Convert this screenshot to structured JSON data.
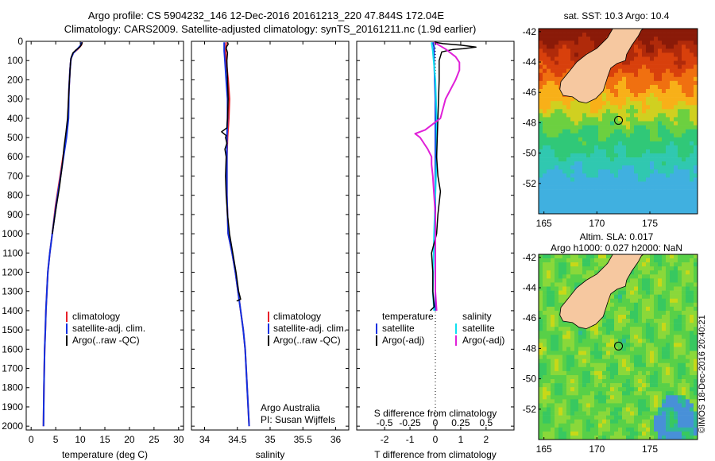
{
  "header": {
    "line1": "Argo profile: CS 5904232_146 12-Dec-2016 20161213_220 47.844S 172.04E",
    "line2": "Climatology: CARS2009. Satellite-adjusted climatology: synTS_20161211.nc (1.9d earlier)"
  },
  "credit": "©IMOS 18-Dec-2016 20:40:21",
  "colors": {
    "climatology": "#e8202a",
    "satellite": "#1030e0",
    "argo": "#000000",
    "cyan": "#10e0f0",
    "magenta": "#e020d8",
    "land": "#f6c8a0"
  },
  "chart_data": [
    {
      "type": "line",
      "id": "temperature-panel",
      "xlabel": "temperature (deg C)",
      "ylabel": "",
      "xlim": [
        -1,
        31
      ],
      "ylim": [
        0,
        2020
      ],
      "xticks": [
        "0",
        "5",
        "10",
        "15",
        "20",
        "25",
        "30"
      ],
      "xtick_values": [
        0,
        5,
        10,
        15,
        20,
        25,
        30
      ],
      "yticks": [
        "0",
        "100",
        "200",
        "300",
        "400",
        "500",
        "600",
        "700",
        "800",
        "900",
        "1000",
        "1100",
        "1200",
        "1300",
        "1400",
        "1500",
        "1600",
        "1700",
        "1800",
        "1900",
        "2000"
      ],
      "legend": [
        "climatology",
        "satellite-adj. clim.",
        "Argo(..raw -QC)"
      ],
      "series": [
        {
          "name": "climatology",
          "color": "#e8202a",
          "width": 2,
          "points": [
            [
              10.4,
              5
            ],
            [
              10.2,
              20
            ],
            [
              9.5,
              40
            ],
            [
              8.6,
              60
            ],
            [
              8.1,
              90
            ],
            [
              7.9,
              150
            ],
            [
              7.7,
              250
            ],
            [
              7.5,
              400
            ],
            [
              7.1,
              500
            ],
            [
              6.5,
              600
            ],
            [
              5.9,
              700
            ],
            [
              5.0,
              850
            ],
            [
              4.3,
              1000
            ],
            [
              3.8,
              1100
            ],
            [
              3.4,
              1200
            ],
            [
              3.2,
              1300
            ],
            [
              3.0,
              1400
            ],
            [
              2.9,
              1500
            ],
            [
              2.75,
              1600
            ],
            [
              2.6,
              1800
            ],
            [
              2.5,
              2000
            ]
          ]
        },
        {
          "name": "satellite-adj. clim.",
          "color": "#1030e0",
          "width": 2,
          "points": [
            [
              10.3,
              5
            ],
            [
              10.1,
              20
            ],
            [
              9.4,
              40
            ],
            [
              8.6,
              60
            ],
            [
              8.1,
              90
            ],
            [
              7.9,
              150
            ],
            [
              7.7,
              250
            ],
            [
              7.6,
              400
            ],
            [
              7.2,
              500
            ],
            [
              6.6,
              600
            ],
            [
              6.0,
              700
            ],
            [
              5.1,
              850
            ],
            [
              4.3,
              1000
            ],
            [
              3.8,
              1100
            ],
            [
              3.4,
              1200
            ],
            [
              3.2,
              1300
            ],
            [
              3.0,
              1400
            ],
            [
              2.9,
              1500
            ],
            [
              2.75,
              1600
            ],
            [
              2.6,
              1800
            ],
            [
              2.5,
              2000
            ]
          ]
        },
        {
          "name": "Argo(..raw -QC)",
          "color": "#000000",
          "width": 1.5,
          "points": [
            [
              10.4,
              5
            ],
            [
              10.3,
              15
            ],
            [
              9.9,
              30
            ],
            [
              9.1,
              45
            ],
            [
              8.5,
              60
            ],
            [
              8.2,
              80
            ],
            [
              8.0,
              110
            ],
            [
              7.8,
              200
            ],
            [
              7.6,
              300
            ],
            [
              7.4,
              400
            ],
            [
              7.1,
              470
            ],
            [
              6.7,
              550
            ],
            [
              6.3,
              650
            ],
            [
              5.8,
              750
            ],
            [
              5.0,
              880
            ],
            [
              4.3,
              1000
            ]
          ]
        }
      ]
    },
    {
      "type": "line",
      "id": "salinity-panel",
      "xlabel": "salinity",
      "ylabel": "",
      "xlim": [
        33.8,
        36.2
      ],
      "ylim": [
        0,
        2020
      ],
      "xticks": [
        "34",
        "34.5",
        "35",
        "35.5",
        "36"
      ],
      "xtick_values": [
        34,
        34.5,
        35,
        35.5,
        36
      ],
      "legend": [
        "climatology",
        "satellite-adj. clim.",
        "Argo(..raw -QC)"
      ],
      "annotations": [
        "Argo Australia",
        "PI: Susan Wijffels"
      ],
      "series": [
        {
          "name": "climatology",
          "color": "#e8202a",
          "width": 2,
          "points": [
            [
              34.33,
              5
            ],
            [
              34.32,
              50
            ],
            [
              34.33,
              100
            ],
            [
              34.36,
              200
            ],
            [
              34.38,
              300
            ],
            [
              34.37,
              400
            ],
            [
              34.35,
              500
            ],
            [
              34.34,
              600
            ],
            [
              34.34,
              800
            ],
            [
              34.36,
              1000
            ],
            [
              34.42,
              1100
            ],
            [
              34.47,
              1200
            ],
            [
              34.51,
              1300
            ],
            [
              34.55,
              1400
            ],
            [
              34.59,
              1500
            ],
            [
              34.62,
              1600
            ],
            [
              34.65,
              1800
            ],
            [
              34.68,
              2000
            ]
          ]
        },
        {
          "name": "satellite-adj. clim.",
          "color": "#1030e0",
          "width": 2,
          "points": [
            [
              34.3,
              5
            ],
            [
              34.3,
              50
            ],
            [
              34.31,
              100
            ],
            [
              34.33,
              200
            ],
            [
              34.35,
              300
            ],
            [
              34.35,
              400
            ],
            [
              34.34,
              500
            ],
            [
              34.34,
              600
            ],
            [
              34.34,
              800
            ],
            [
              34.36,
              1000
            ],
            [
              34.42,
              1100
            ],
            [
              34.47,
              1200
            ],
            [
              34.51,
              1300
            ],
            [
              34.55,
              1400
            ],
            [
              34.59,
              1500
            ],
            [
              34.62,
              1600
            ],
            [
              34.65,
              1800
            ],
            [
              34.68,
              2000
            ]
          ]
        },
        {
          "name": "Argo(..raw -QC)",
          "color": "#000000",
          "width": 1.5,
          "points": [
            [
              34.35,
              5
            ],
            [
              34.36,
              15
            ],
            [
              34.34,
              25
            ],
            [
              34.33,
              35
            ],
            [
              34.35,
              60
            ],
            [
              34.34,
              100
            ],
            [
              34.35,
              200
            ],
            [
              34.36,
              300
            ],
            [
              34.35,
              400
            ],
            [
              34.34,
              450
            ],
            [
              34.26,
              470
            ],
            [
              34.33,
              490
            ],
            [
              34.32,
              500
            ],
            [
              34.34,
              530
            ],
            [
              34.31,
              560
            ],
            [
              34.33,
              600
            ],
            [
              34.32,
              700
            ],
            [
              34.33,
              800
            ],
            [
              34.35,
              900
            ],
            [
              34.38,
              1000
            ],
            [
              34.43,
              1100
            ],
            [
              34.48,
              1200
            ],
            [
              34.52,
              1300
            ],
            [
              34.55,
              1340
            ],
            [
              34.49,
              1350
            ]
          ]
        }
      ]
    },
    {
      "type": "line",
      "id": "difference-panel",
      "xlabel": "T difference from climatology",
      "xlabel_top": "S difference from climatology",
      "xlim": [
        -3.1,
        3.1
      ],
      "ylim": [
        0,
        2020
      ],
      "xticks": [
        "-2",
        "-1",
        "0",
        "1",
        "2"
      ],
      "xtick_values": [
        -2,
        -1,
        0,
        1,
        2
      ],
      "s_ticks": [
        "-0.5",
        "-0.25",
        "0",
        "0.25",
        "0.5"
      ],
      "legend_temperature": {
        "heading": "temperature",
        "items": [
          "satellite",
          "Argo(-adj)"
        ]
      },
      "legend_salinity": {
        "heading": "salinity",
        "items": [
          "satellite",
          "Argo(-adj)"
        ]
      },
      "series": [
        {
          "name": "temperature satellite",
          "color": "#1030e0",
          "width": 2,
          "points": [
            [
              -0.1,
              5
            ],
            [
              -0.05,
              30
            ],
            [
              -0.05,
              100
            ],
            [
              0,
              300
            ],
            [
              0,
              600
            ],
            [
              0,
              1000
            ],
            [
              0,
              1400
            ]
          ]
        },
        {
          "name": "salinity satellite",
          "color": "#10e0f0",
          "width": 2,
          "points": [
            [
              -0.15,
              5
            ],
            [
              -0.1,
              50
            ],
            [
              0,
              200
            ],
            [
              0.05,
              400
            ],
            [
              0.05,
              600
            ],
            [
              0,
              800
            ],
            [
              -0.05,
              1000
            ],
            [
              -0.1,
              1300
            ],
            [
              -0.05,
              1400
            ]
          ]
        },
        {
          "name": "temperature Argo(-adj)",
          "color": "#000000",
          "width": 1.5,
          "points": [
            [
              0,
              5
            ],
            [
              0.3,
              12
            ],
            [
              1.0,
              20
            ],
            [
              1.6,
              30
            ],
            [
              1.1,
              38
            ],
            [
              0.7,
              42
            ],
            [
              0.25,
              55
            ],
            [
              0.15,
              100
            ],
            [
              0.15,
              200
            ],
            [
              0.1,
              400
            ],
            [
              0.05,
              600
            ],
            [
              0.1,
              700
            ],
            [
              0.2,
              780
            ],
            [
              0.1,
              900
            ],
            [
              0.05,
              1000
            ],
            [
              -0.15,
              1100
            ],
            [
              -0.1,
              1200
            ],
            [
              -0.1,
              1300
            ],
            [
              -0.05,
              1380
            ],
            [
              -0.2,
              1400
            ]
          ]
        },
        {
          "name": "salinity Argo(-adj)",
          "color": "#e020d8",
          "width": 2,
          "points": [
            [
              -0.05,
              5
            ],
            [
              0.4,
              40
            ],
            [
              0.8,
              80
            ],
            [
              0.95,
              110
            ],
            [
              0.95,
              150
            ],
            [
              0.8,
              200
            ],
            [
              0.4,
              300
            ],
            [
              0.2,
              400
            ],
            [
              -0.4,
              460
            ],
            [
              -0.8,
              480
            ],
            [
              -0.6,
              500
            ],
            [
              -0.3,
              560
            ],
            [
              -0.15,
              600
            ],
            [
              -0.15,
              640
            ],
            [
              -0.1,
              700
            ],
            [
              -0.05,
              800
            ],
            [
              0,
              900
            ],
            [
              0,
              1000
            ],
            [
              0,
              1100
            ],
            [
              0,
              1200
            ],
            [
              0,
              1300
            ],
            [
              0.05,
              1400
            ]
          ]
        }
      ]
    },
    {
      "type": "heatmap",
      "id": "sst-map",
      "title": "sat. SST: 10.3 Argo: 10.4",
      "xticks": [
        "165",
        "170",
        "175"
      ],
      "xtick_values": [
        165,
        170,
        175
      ],
      "yticks": [
        "-42",
        "-44",
        "-46",
        "-48",
        "-50",
        "-52"
      ],
      "ytick_values": [
        -42,
        -44,
        -46,
        -48,
        -50,
        -52
      ],
      "xlim": [
        164.5,
        179.5
      ],
      "ylim": [
        -54,
        -41.8
      ],
      "marker": [
        172.04,
        -47.844
      ],
      "field": "sst"
    },
    {
      "type": "heatmap",
      "id": "sla-map",
      "title": "Altim. SLA: 0.017",
      "subtitle": "Argo h1000: 0.027 h2000: NaN",
      "xticks": [
        "165",
        "170",
        "175"
      ],
      "xtick_values": [
        165,
        170,
        175
      ],
      "yticks": [
        "-42",
        "-44",
        "-46",
        "-48",
        "-50",
        "-52"
      ],
      "ytick_values": [
        -42,
        -44,
        -46,
        -48,
        -50,
        -52
      ],
      "xlim": [
        164.5,
        179.5
      ],
      "ylim": [
        -54,
        -41.8
      ],
      "marker": [
        172.04,
        -47.844
      ],
      "field": "sla"
    }
  ]
}
